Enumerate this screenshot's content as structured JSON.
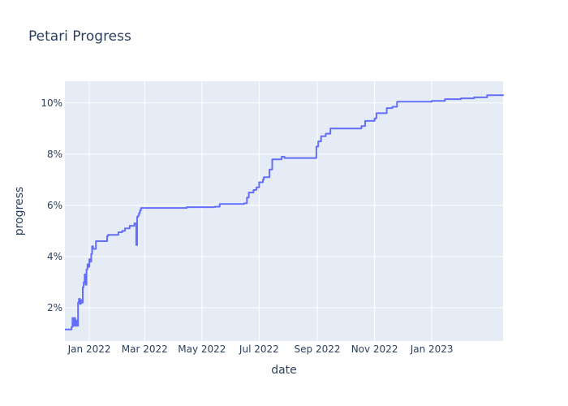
{
  "chart_data": {
    "type": "line",
    "title": "Petari Progress",
    "xlabel": "date",
    "ylabel": "progress",
    "xlim": [
      "2021-12-06",
      "2023-03-18"
    ],
    "ylim": [
      0.7,
      10.85
    ],
    "y_unit": "%",
    "grid": true,
    "background": "#e5ecf6",
    "line_color": "#636efa",
    "x_ticks": [
      {
        "date": "2022-01-01",
        "label": "Jan 2022"
      },
      {
        "date": "2022-03-01",
        "label": "Mar 2022"
      },
      {
        "date": "2022-05-01",
        "label": "May 2022"
      },
      {
        "date": "2022-07-01",
        "label": "Jul 2022"
      },
      {
        "date": "2022-09-01",
        "label": "Sep 2022"
      },
      {
        "date": "2022-11-01",
        "label": "Nov 2022"
      },
      {
        "date": "2023-01-01",
        "label": "Jan 2023"
      }
    ],
    "y_ticks": [
      {
        "value": 2,
        "label": "2%"
      },
      {
        "value": 4,
        "label": "4%"
      },
      {
        "value": 6,
        "label": "6%"
      },
      {
        "value": 8,
        "label": "8%"
      },
      {
        "value": 10,
        "label": "10%"
      }
    ],
    "series": [
      {
        "x": [
          "2021-12-06",
          "2021-12-13",
          "2021-12-14",
          "2021-12-15",
          "2021-12-16",
          "2021-12-17",
          "2021-12-18",
          "2021-12-19",
          "2021-12-20",
          "2021-12-21",
          "2021-12-22",
          "2021-12-23",
          "2021-12-24",
          "2021-12-25",
          "2021-12-26",
          "2021-12-27",
          "2021-12-28",
          "2021-12-29",
          "2021-12-30",
          "2021-12-31",
          "2022-01-01",
          "2022-01-02",
          "2022-01-03",
          "2022-01-04",
          "2022-01-05",
          "2022-01-08",
          "2022-01-09",
          "2022-01-15",
          "2022-01-20",
          "2022-01-21",
          "2022-02-01",
          "2022-02-05",
          "2022-02-08",
          "2022-02-13",
          "2022-02-18",
          "2022-02-19",
          "2022-02-20",
          "2022-02-21",
          "2022-02-22",
          "2022-02-23",
          "2022-02-24",
          "2022-02-25",
          "2022-03-01",
          "2022-04-01",
          "2022-04-15",
          "2022-05-01",
          "2022-05-15",
          "2022-05-20",
          "2022-06-15",
          "2022-06-18",
          "2022-06-20",
          "2022-06-25",
          "2022-06-28",
          "2022-07-01",
          "2022-07-05",
          "2022-07-06",
          "2022-07-12",
          "2022-07-15",
          "2022-07-25",
          "2022-07-28",
          "2022-08-31",
          "2022-09-02",
          "2022-09-05",
          "2022-09-10",
          "2022-09-15",
          "2022-09-20",
          "2022-10-15",
          "2022-10-18",
          "2022-10-22",
          "2022-11-01",
          "2022-11-03",
          "2022-11-12",
          "2022-11-14",
          "2022-11-20",
          "2022-11-25",
          "2023-01-01",
          "2023-01-15",
          "2023-02-01",
          "2023-02-15",
          "2023-03-01",
          "2023-03-18"
        ],
        "y": [
          1.15,
          1.25,
          1.6,
          1.3,
          1.6,
          1.3,
          1.5,
          1.3,
          2.2,
          2.35,
          2.15,
          2.3,
          2.2,
          2.8,
          3.0,
          3.3,
          2.9,
          3.5,
          3.7,
          3.6,
          3.9,
          3.8,
          4.1,
          4.4,
          4.3,
          4.6,
          4.6,
          4.6,
          4.8,
          4.85,
          4.95,
          5.0,
          5.1,
          5.2,
          5.3,
          5.3,
          4.45,
          5.55,
          5.6,
          5.7,
          5.8,
          5.9,
          5.9,
          5.9,
          5.93,
          5.93,
          5.95,
          6.05,
          6.08,
          6.3,
          6.5,
          6.6,
          6.7,
          6.9,
          7.0,
          7.1,
          7.4,
          7.8,
          7.9,
          7.85,
          8.3,
          8.5,
          8.7,
          8.8,
          9.0,
          9.0,
          9.0,
          9.1,
          9.3,
          9.4,
          9.6,
          9.6,
          9.8,
          9.85,
          10.05,
          10.08,
          10.15,
          10.18,
          10.22,
          10.3,
          10.33
        ]
      }
    ]
  }
}
